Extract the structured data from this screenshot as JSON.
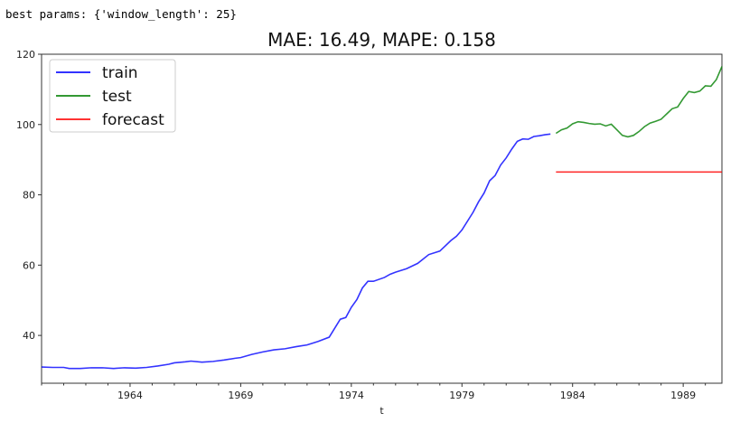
{
  "output_text": "best params: {'window_length': 25}",
  "chart_data": {
    "type": "line",
    "title": "MAE: 16.49, MAPE: 0.158",
    "xlabel": "t",
    "ylabel": "",
    "xlim": [
      1960.0,
      1990.75
    ],
    "ylim": [
      26.4,
      120
    ],
    "xticks": [
      1964,
      1969,
      1974,
      1979,
      1984,
      1989
    ],
    "yticks": [
      40,
      60,
      80,
      100,
      120
    ],
    "grid": false,
    "legend": "top-left",
    "series": [
      {
        "name": "train",
        "color": "#0000ff",
        "points": [
          [
            1960,
            31.0
          ],
          [
            1960.5,
            30.9
          ],
          [
            1961,
            30.9
          ],
          [
            1961.25,
            30.6
          ],
          [
            1961.75,
            30.6
          ],
          [
            1962.25,
            30.8
          ],
          [
            1962.75,
            30.8
          ],
          [
            1963.25,
            30.6
          ],
          [
            1963.75,
            30.8
          ],
          [
            1964.25,
            30.7
          ],
          [
            1964.75,
            30.9
          ],
          [
            1965.25,
            31.3
          ],
          [
            1965.75,
            31.8
          ],
          [
            1966,
            32.2
          ],
          [
            1966.5,
            32.5
          ],
          [
            1966.75,
            32.7
          ],
          [
            1967.25,
            32.4
          ],
          [
            1967.75,
            32.6
          ],
          [
            1968.25,
            33.0
          ],
          [
            1968.75,
            33.5
          ],
          [
            1969,
            33.7
          ],
          [
            1969.5,
            34.6
          ],
          [
            1970,
            35.3
          ],
          [
            1970.5,
            35.9
          ],
          [
            1971,
            36.2
          ],
          [
            1971.5,
            36.8
          ],
          [
            1972,
            37.3
          ],
          [
            1972.5,
            38.3
          ],
          [
            1973,
            39.5
          ],
          [
            1973.5,
            44.6
          ],
          [
            1973.75,
            45.1
          ],
          [
            1974,
            48.0
          ],
          [
            1974.25,
            50.2
          ],
          [
            1974.5,
            53.5
          ],
          [
            1974.75,
            55.4
          ],
          [
            1975,
            55.4
          ],
          [
            1975.5,
            56.5
          ],
          [
            1975.75,
            57.4
          ],
          [
            1976,
            58.0
          ],
          [
            1976.5,
            59.0
          ],
          [
            1977,
            60.5
          ],
          [
            1977.5,
            63.0
          ],
          [
            1978,
            64.0
          ],
          [
            1978.5,
            67.0
          ],
          [
            1978.75,
            68.2
          ],
          [
            1979,
            70.0
          ],
          [
            1979.5,
            75.0
          ],
          [
            1979.75,
            78.0
          ],
          [
            1980,
            80.5
          ],
          [
            1980.25,
            84.0
          ],
          [
            1980.5,
            85.5
          ],
          [
            1980.75,
            88.5
          ],
          [
            1981,
            90.5
          ],
          [
            1981.25,
            93.0
          ],
          [
            1981.5,
            95.2
          ],
          [
            1981.75,
            95.9
          ],
          [
            1982,
            95.8
          ],
          [
            1982.25,
            96.6
          ],
          [
            1982.5,
            96.8
          ],
          [
            1982.75,
            97.1
          ],
          [
            1983.0,
            97.3
          ]
        ]
      },
      {
        "name": "test",
        "color": "#008000",
        "points": [
          [
            1983.25,
            97.5
          ],
          [
            1983.5,
            98.5
          ],
          [
            1983.75,
            99.0
          ],
          [
            1984,
            100.2
          ],
          [
            1984.25,
            100.8
          ],
          [
            1984.5,
            100.6
          ],
          [
            1984.75,
            100.3
          ],
          [
            1985,
            100.1
          ],
          [
            1985.25,
            100.2
          ],
          [
            1985.5,
            99.6
          ],
          [
            1985.75,
            100.1
          ],
          [
            1986,
            98.5
          ],
          [
            1986.25,
            96.9
          ],
          [
            1986.5,
            96.5
          ],
          [
            1986.75,
            96.9
          ],
          [
            1987,
            98.0
          ],
          [
            1987.25,
            99.4
          ],
          [
            1987.5,
            100.4
          ],
          [
            1987.75,
            100.9
          ],
          [
            1988,
            101.5
          ],
          [
            1988.25,
            103.0
          ],
          [
            1988.5,
            104.5
          ],
          [
            1988.75,
            105.0
          ],
          [
            1989,
            107.4
          ],
          [
            1989.25,
            109.4
          ],
          [
            1989.5,
            109.1
          ],
          [
            1989.75,
            109.5
          ],
          [
            1990,
            111.0
          ],
          [
            1990.25,
            110.9
          ],
          [
            1990.5,
            112.8
          ],
          [
            1990.75,
            116.5
          ]
        ]
      },
      {
        "name": "forecast",
        "color": "#ff0000",
        "points": [
          [
            1983.25,
            86.5
          ],
          [
            1990.75,
            86.5
          ]
        ]
      }
    ]
  }
}
